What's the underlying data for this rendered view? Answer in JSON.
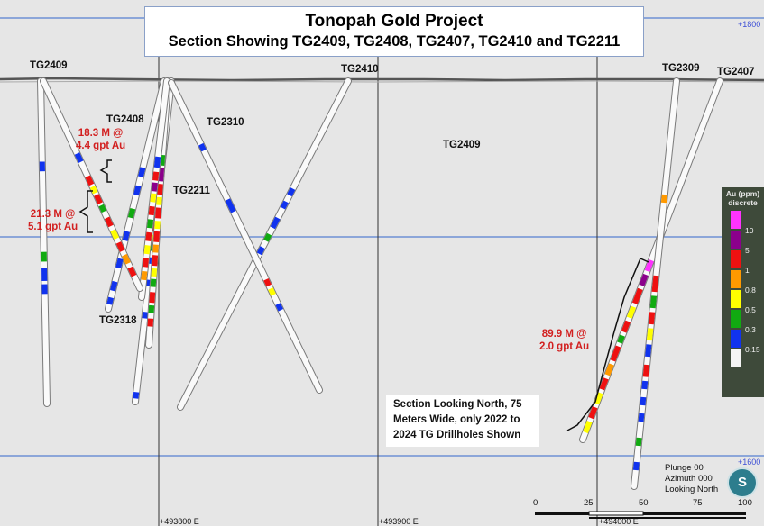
{
  "title": {
    "line1": "Tonopah Gold Project",
    "line2": "Section Showing TG2409, TG2408, TG2407, TG2410 and TG2211"
  },
  "hole_labels": {
    "tg2409_left": "TG2409",
    "tg2410": "TG2410",
    "tg2309": "TG2309",
    "tg2407": "TG2407",
    "tg2408": "TG2408",
    "tg2310": "TG2310",
    "tg2409_mid": "TG2409",
    "tg2211": "TG2211",
    "tg2318": "TG2318"
  },
  "intercepts": {
    "a": {
      "line1": "18.3 M @",
      "line2": "4.4 gpt Au"
    },
    "b": {
      "line1": "21.3 M @",
      "line2": "5.1 gpt Au"
    },
    "c": {
      "line1": "89.9 M @",
      "line2": "2.0 gpt Au"
    }
  },
  "grid": {
    "e1": "+493800 E",
    "e2": "+493900 E",
    "e3": "+494000 E",
    "elev_top": "+1800",
    "elev_bottom": "+1600"
  },
  "note": {
    "line1": "Section Looking North, 75",
    "line2": "Meters Wide, only 2022 to",
    "line3": "2024 TG Drillholes Shown"
  },
  "legend": {
    "title1": "Au (ppm)",
    "title2": "discrete",
    "levels": [
      "10",
      "5",
      "1",
      "0.8",
      "0.5",
      "0.3",
      "0.15"
    ],
    "colors": [
      "#ff33ff",
      "#8b008b",
      "#ee1111",
      "#ff9900",
      "#ffff00",
      "#11aa11",
      "#1133ee",
      "#f4f4f4"
    ]
  },
  "orientation": {
    "plunge": "Plunge 00",
    "azimuth": "Azimuth 000",
    "looking": "Looking North",
    "compass_letter": "S"
  },
  "scale": {
    "ticks": [
      "0",
      "25",
      "50",
      "75",
      "100"
    ]
  }
}
